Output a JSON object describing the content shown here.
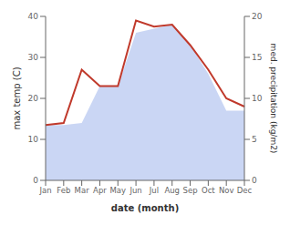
{
  "chart_data": {
    "type": "line",
    "categories": [
      "Jan",
      "Feb",
      "Mar",
      "Apr",
      "May",
      "Jun",
      "Jul",
      "Aug",
      "Sep",
      "Oct",
      "Nov",
      "Dec"
    ],
    "series": [
      {
        "type": "area",
        "color": "#b8c8f0",
        "values": [
          13.5,
          13.5,
          14.0,
          23.0,
          23.0,
          36.0,
          37.0,
          38.0,
          33.0,
          26.0,
          17.0,
          17.0
        ]
      },
      {
        "type": "line",
        "color": "#c0392b",
        "values": [
          13.5,
          14.0,
          27.0,
          23.0,
          23.0,
          39.0,
          37.5,
          38.0,
          33.0,
          27.0,
          20.0,
          18.0
        ]
      }
    ],
    "xlabel": "date (month)",
    "ylabel": "max temp (C)",
    "y2label": "med. precipitation (kg/m2)",
    "ylim": [
      0,
      40
    ],
    "yticks": [
      0,
      10,
      20,
      30,
      40
    ],
    "y2lim": [
      0,
      20
    ],
    "y2ticks": [
      0,
      5,
      10,
      15,
      20
    ],
    "grid": false
  }
}
